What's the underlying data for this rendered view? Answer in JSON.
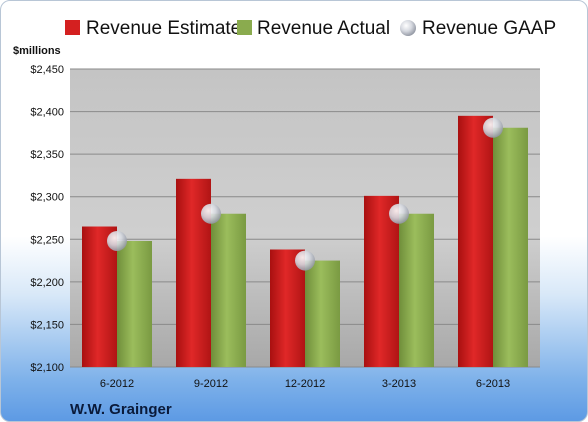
{
  "chart_data": {
    "type": "bar",
    "unit_label": "$millions",
    "company": "W.W. Grainger",
    "categories": [
      "6-2012",
      "9-2012",
      "12-2012",
      "3-2013",
      "6-2013"
    ],
    "series": [
      {
        "name": "Revenue Estimate",
        "kind": "bar",
        "color": "#d42020",
        "values": [
          2265,
          2321,
          2238,
          2301,
          2395
        ]
      },
      {
        "name": "Revenue Actual",
        "kind": "bar",
        "color": "#8aab4e",
        "values": [
          2248,
          2280,
          2225,
          2280,
          2381
        ]
      },
      {
        "name": "Revenue GAAP",
        "kind": "marker",
        "color": "#c8ccd6",
        "values": [
          2248,
          2280,
          2225,
          2280,
          2381
        ]
      }
    ],
    "ylim": [
      2100,
      2450
    ],
    "yticks": [
      2100,
      2150,
      2200,
      2250,
      2300,
      2350,
      2400,
      2450
    ],
    "ytick_labels": [
      "$2,100",
      "$2,150",
      "$2,200",
      "$2,250",
      "$2,300",
      "$2,350",
      "$2,400",
      "$2,450"
    ],
    "grid": true,
    "legend_position": "top"
  }
}
